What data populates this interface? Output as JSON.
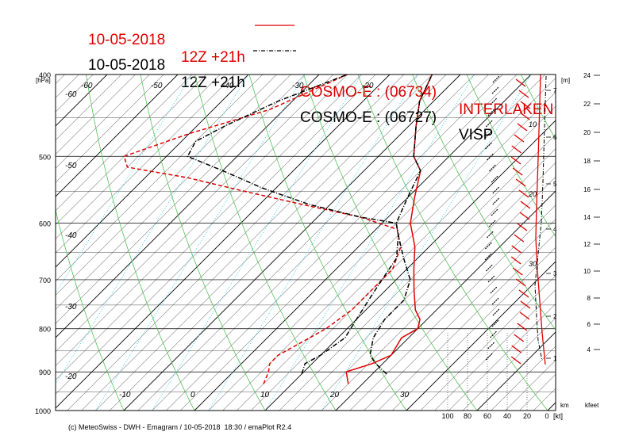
{
  "titles": {
    "line1": {
      "date": "10-05-2018",
      "run": "12Z +21h",
      "model": "COSMO-E : (06734)",
      "station": "INTERLAKEN",
      "color": "#e00000"
    },
    "line2": {
      "date": "10-05-2018",
      "run": "12Z +21h",
      "model": "COSMO-E : (06727)",
      "station": "VISP",
      "color": "#000000"
    }
  },
  "footer": "(c) MeteoSwiss - DWH - Emagram / 10-05-2018  18:30 / emaPlot R2.4",
  "chart_data": {
    "type": "emagram",
    "y_axis": {
      "label": "[hPa]",
      "ticks": [
        "400",
        "500",
        "600",
        "700",
        "800",
        "900",
        "1000"
      ],
      "range": [
        400,
        1000
      ]
    },
    "temperature_labels": {
      "left_column": [
        "-60",
        "-50",
        "-40",
        "-30",
        "-20"
      ],
      "top_row": [
        "-60",
        "-50",
        "-40",
        "-30",
        "-20"
      ],
      "bottom_row": [
        "-10",
        "0",
        "10",
        "20",
        "30"
      ]
    },
    "height_axis": {
      "unit": "[m]",
      "ticks": [
        "7",
        "6",
        "5",
        "4",
        "3",
        "2",
        "1"
      ],
      "bottom_label": "km"
    },
    "kfeet_axis": {
      "ticks": [
        "24",
        "22",
        "20",
        "18",
        "16",
        "14",
        "12",
        "10",
        "8",
        "6",
        "4"
      ],
      "bottom_label": "kfeet"
    },
    "wind_axis": {
      "ticks": [
        "100",
        "80",
        "60",
        "40",
        "20",
        "0"
      ],
      "unit": "[kt]",
      "curve_labels": [
        "10",
        "20",
        "30"
      ]
    },
    "colors": {
      "interlaken": "#e00000",
      "visp": "#000000",
      "isotherm": "#000000",
      "dry_adiabat": "#55c255",
      "mixing_ratio": "#33ccee"
    },
    "series": [
      {
        "name": "INTERLAKEN",
        "kind": "temperature",
        "style": "solid",
        "points": [
          [
            930,
            18
          ],
          [
            900,
            16
          ],
          [
            880,
            18.5
          ],
          [
            860,
            20
          ],
          [
            820,
            19
          ],
          [
            800,
            20
          ],
          [
            780,
            19
          ],
          [
            760,
            17
          ],
          [
            720,
            14
          ],
          [
            680,
            11
          ],
          [
            640,
            8
          ],
          [
            600,
            4
          ],
          [
            560,
            1
          ],
          [
            520,
            -2
          ],
          [
            500,
            -5
          ],
          [
            460,
            -9
          ],
          [
            430,
            -12
          ],
          [
            400,
            -14
          ]
        ]
      },
      {
        "name": "INTERLAKEN",
        "kind": "dewpoint",
        "style": "dashed",
        "points": [
          [
            930,
            6
          ],
          [
            900,
            5
          ],
          [
            880,
            4
          ],
          [
            860,
            4
          ],
          [
            840,
            5
          ],
          [
            800,
            7
          ],
          [
            760,
            8
          ],
          [
            720,
            8
          ],
          [
            680,
            8
          ],
          [
            640,
            6
          ],
          [
            610,
            3
          ],
          [
            590,
            -4
          ],
          [
            570,
            -14
          ],
          [
            550,
            -24
          ],
          [
            530,
            -34
          ],
          [
            515,
            -44
          ],
          [
            500,
            -46
          ],
          [
            470,
            -40
          ],
          [
            440,
            -32
          ],
          [
            400,
            -26
          ]
        ]
      },
      {
        "name": "VISP",
        "kind": "temperature",
        "style": "dashdot",
        "points": [
          [
            905,
            22
          ],
          [
            880,
            19
          ],
          [
            860,
            17
          ],
          [
            820,
            15
          ],
          [
            780,
            14
          ],
          [
            740,
            14
          ],
          [
            700,
            12
          ],
          [
            660,
            8
          ],
          [
            620,
            4
          ],
          [
            600,
            2
          ],
          [
            560,
            0
          ],
          [
            520,
            -2
          ],
          [
            500,
            -5
          ],
          [
            460,
            -9
          ],
          [
            430,
            -12
          ],
          [
            400,
            -14
          ]
        ]
      },
      {
        "name": "VISP",
        "kind": "dewpoint",
        "style": "dashdot",
        "points": [
          [
            905,
            10
          ],
          [
            880,
            9
          ],
          [
            860,
            10
          ],
          [
            820,
            11
          ],
          [
            780,
            10
          ],
          [
            740,
            9
          ],
          [
            700,
            8
          ],
          [
            660,
            7
          ],
          [
            620,
            4
          ],
          [
            600,
            2
          ],
          [
            590,
            -4
          ],
          [
            570,
            -13
          ],
          [
            545,
            -22
          ],
          [
            520,
            -30
          ],
          [
            500,
            -37
          ],
          [
            480,
            -38
          ],
          [
            460,
            -36
          ],
          [
            430,
            -32
          ],
          [
            400,
            -26
          ]
        ]
      }
    ]
  }
}
